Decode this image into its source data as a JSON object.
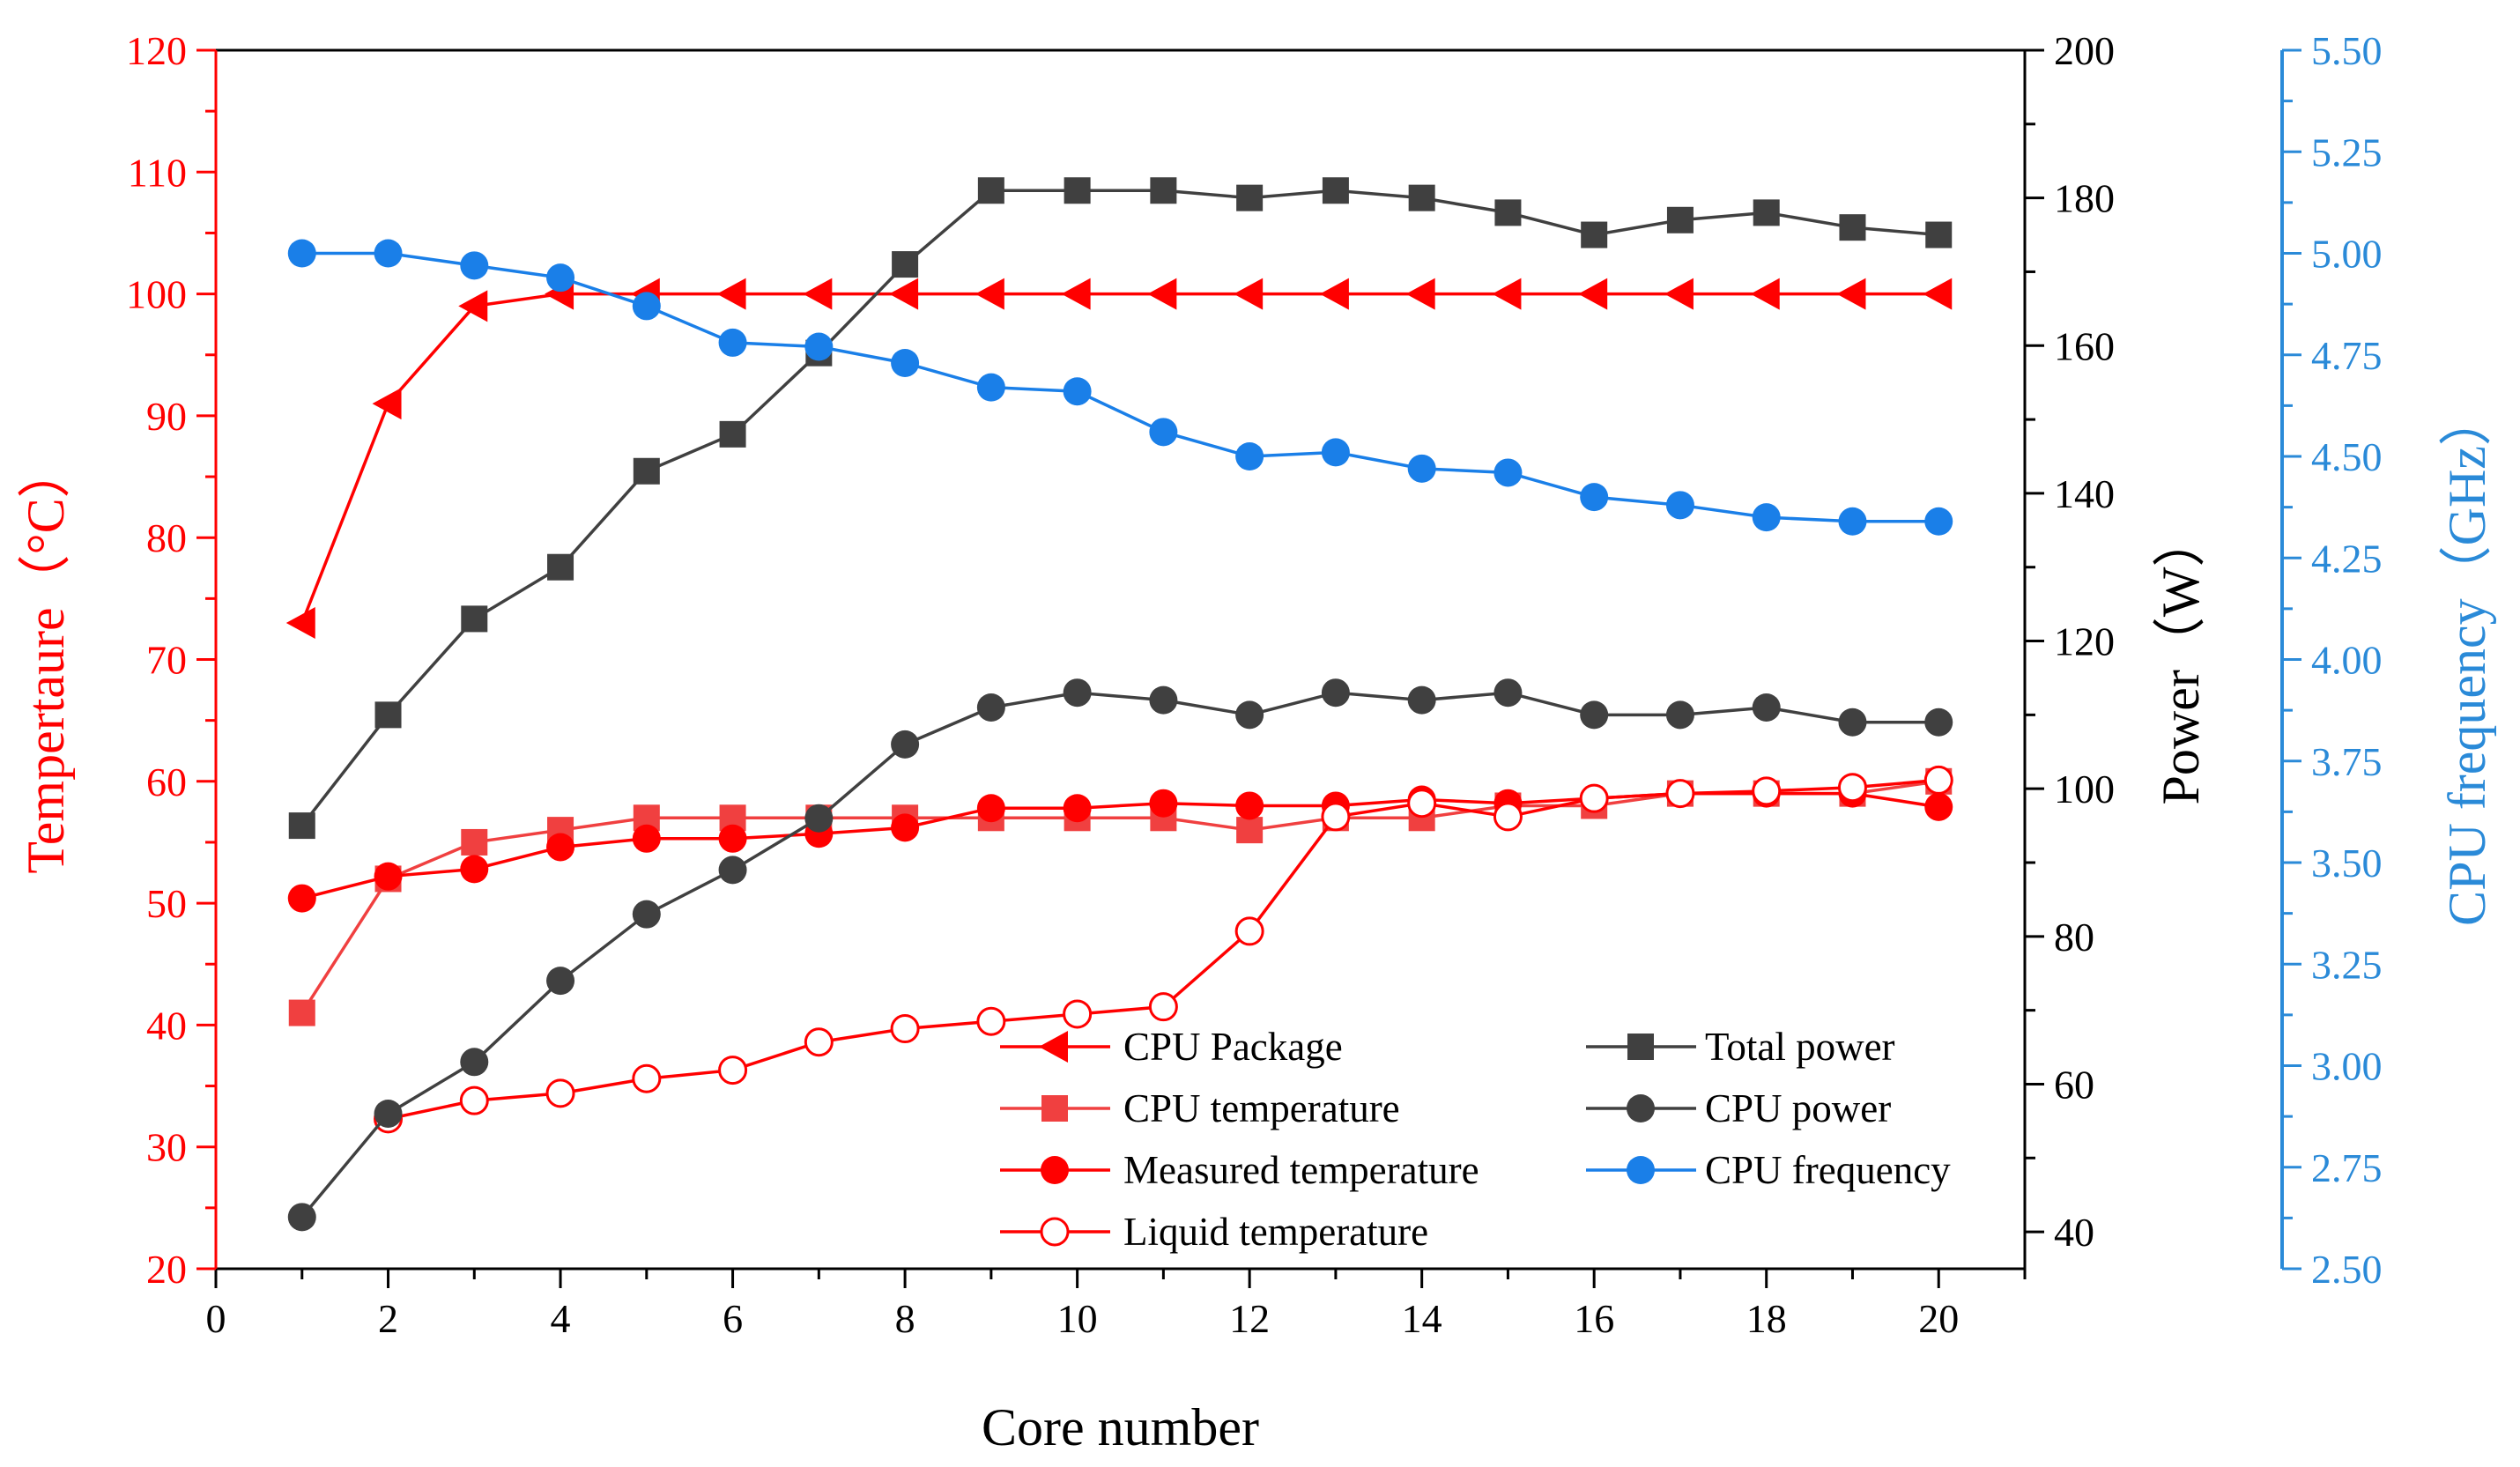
{
  "chart_data": {
    "type": "line",
    "xlabel": "Core number",
    "ylabel_left": "Tempertaure（°C）",
    "ylabel_right": "Power（W）",
    "ylabel_right2": "CPU frequency（GHz）",
    "xlim": [
      0,
      21
    ],
    "ylim_left": [
      20,
      120
    ],
    "ylim_right": [
      35,
      200
    ],
    "ylim_right2": [
      2.5,
      5.5
    ],
    "xticks": [
      "0",
      "2",
      "4",
      "6",
      "8",
      "10",
      "12",
      "14",
      "16",
      "18",
      "20"
    ],
    "yticks_left": [
      "20",
      "30",
      "40",
      "50",
      "60",
      "70",
      "80",
      "90",
      "100",
      "110",
      "120"
    ],
    "yticks_right": [
      "40",
      "60",
      "80",
      "100",
      "120",
      "140",
      "160",
      "180",
      "200"
    ],
    "yticks_right2": [
      "2.50",
      "2.75",
      "3.00",
      "3.25",
      "3.50",
      "3.75",
      "4.00",
      "4.25",
      "4.50",
      "4.75",
      "5.00",
      "5.25",
      "5.50"
    ],
    "legend_position": "bottom-right",
    "colors": {
      "red": "#ff0000",
      "light_red": "#f04040",
      "black": "#404040",
      "blue": "#1a7fe8",
      "blue_axis": "#2a8ad8"
    },
    "x": [
      1,
      2,
      3,
      4,
      5,
      6,
      7,
      8,
      9,
      10,
      11,
      12,
      13,
      14,
      15,
      16,
      17,
      18,
      19,
      20
    ],
    "series": [
      {
        "name": "CPU Package",
        "axis": "left",
        "marker": "triangle-left",
        "color": "red",
        "values": [
          73,
          91,
          99,
          100,
          100,
          100,
          100,
          100,
          100,
          100,
          100,
          100,
          100,
          100,
          100,
          100,
          100,
          100,
          100,
          100
        ]
      },
      {
        "name": "CPU temperature",
        "axis": "left",
        "marker": "square",
        "color": "light_red",
        "values": [
          41,
          52,
          55,
          56,
          57,
          57,
          57,
          57,
          57,
          57,
          57,
          56,
          57,
          57,
          58,
          58,
          59,
          59,
          59,
          60
        ]
      },
      {
        "name": "Measured temperature",
        "axis": "left",
        "marker": "circle",
        "color": "red",
        "values": [
          50.4,
          52.2,
          52.8,
          54.6,
          55.3,
          55.3,
          55.7,
          56.2,
          57.8,
          57.8,
          58.2,
          58.0,
          58.0,
          58.5,
          58.2,
          58.6,
          59.0,
          59.0,
          59.0,
          57.9
        ]
      },
      {
        "name": "Liquid temperature",
        "axis": "left",
        "marker": "open-circle",
        "color": "red",
        "values": [
          null,
          32.3,
          33.8,
          34.4,
          35.6,
          36.3,
          38.6,
          39.7,
          40.3,
          40.9,
          41.5,
          47.7,
          57.1,
          58.2,
          57.1,
          58.6,
          59.0,
          59.2,
          59.5,
          60.1
        ]
      },
      {
        "name": "Total power",
        "axis": "right",
        "marker": "square",
        "color": "black",
        "values": [
          95,
          110,
          123,
          130,
          143,
          148,
          159,
          171,
          181,
          181,
          181,
          180,
          181,
          180,
          178,
          175,
          177,
          178,
          176,
          175
        ]
      },
      {
        "name": "CPU  power",
        "axis": "right",
        "marker": "circle",
        "color": "black",
        "values": [
          42,
          56,
          63,
          74,
          83,
          89,
          96,
          106,
          111,
          113,
          112,
          110,
          113,
          112,
          113,
          110,
          110,
          111,
          109,
          109
        ]
      },
      {
        "name": "CPU frequency",
        "axis": "right2",
        "marker": "circle",
        "color": "blue",
        "values": [
          5.0,
          5.0,
          4.97,
          4.94,
          4.87,
          4.78,
          4.77,
          4.73,
          4.67,
          4.66,
          4.56,
          4.5,
          4.51,
          4.47,
          4.46,
          4.4,
          4.38,
          4.35,
          4.34,
          4.34
        ]
      }
    ]
  }
}
